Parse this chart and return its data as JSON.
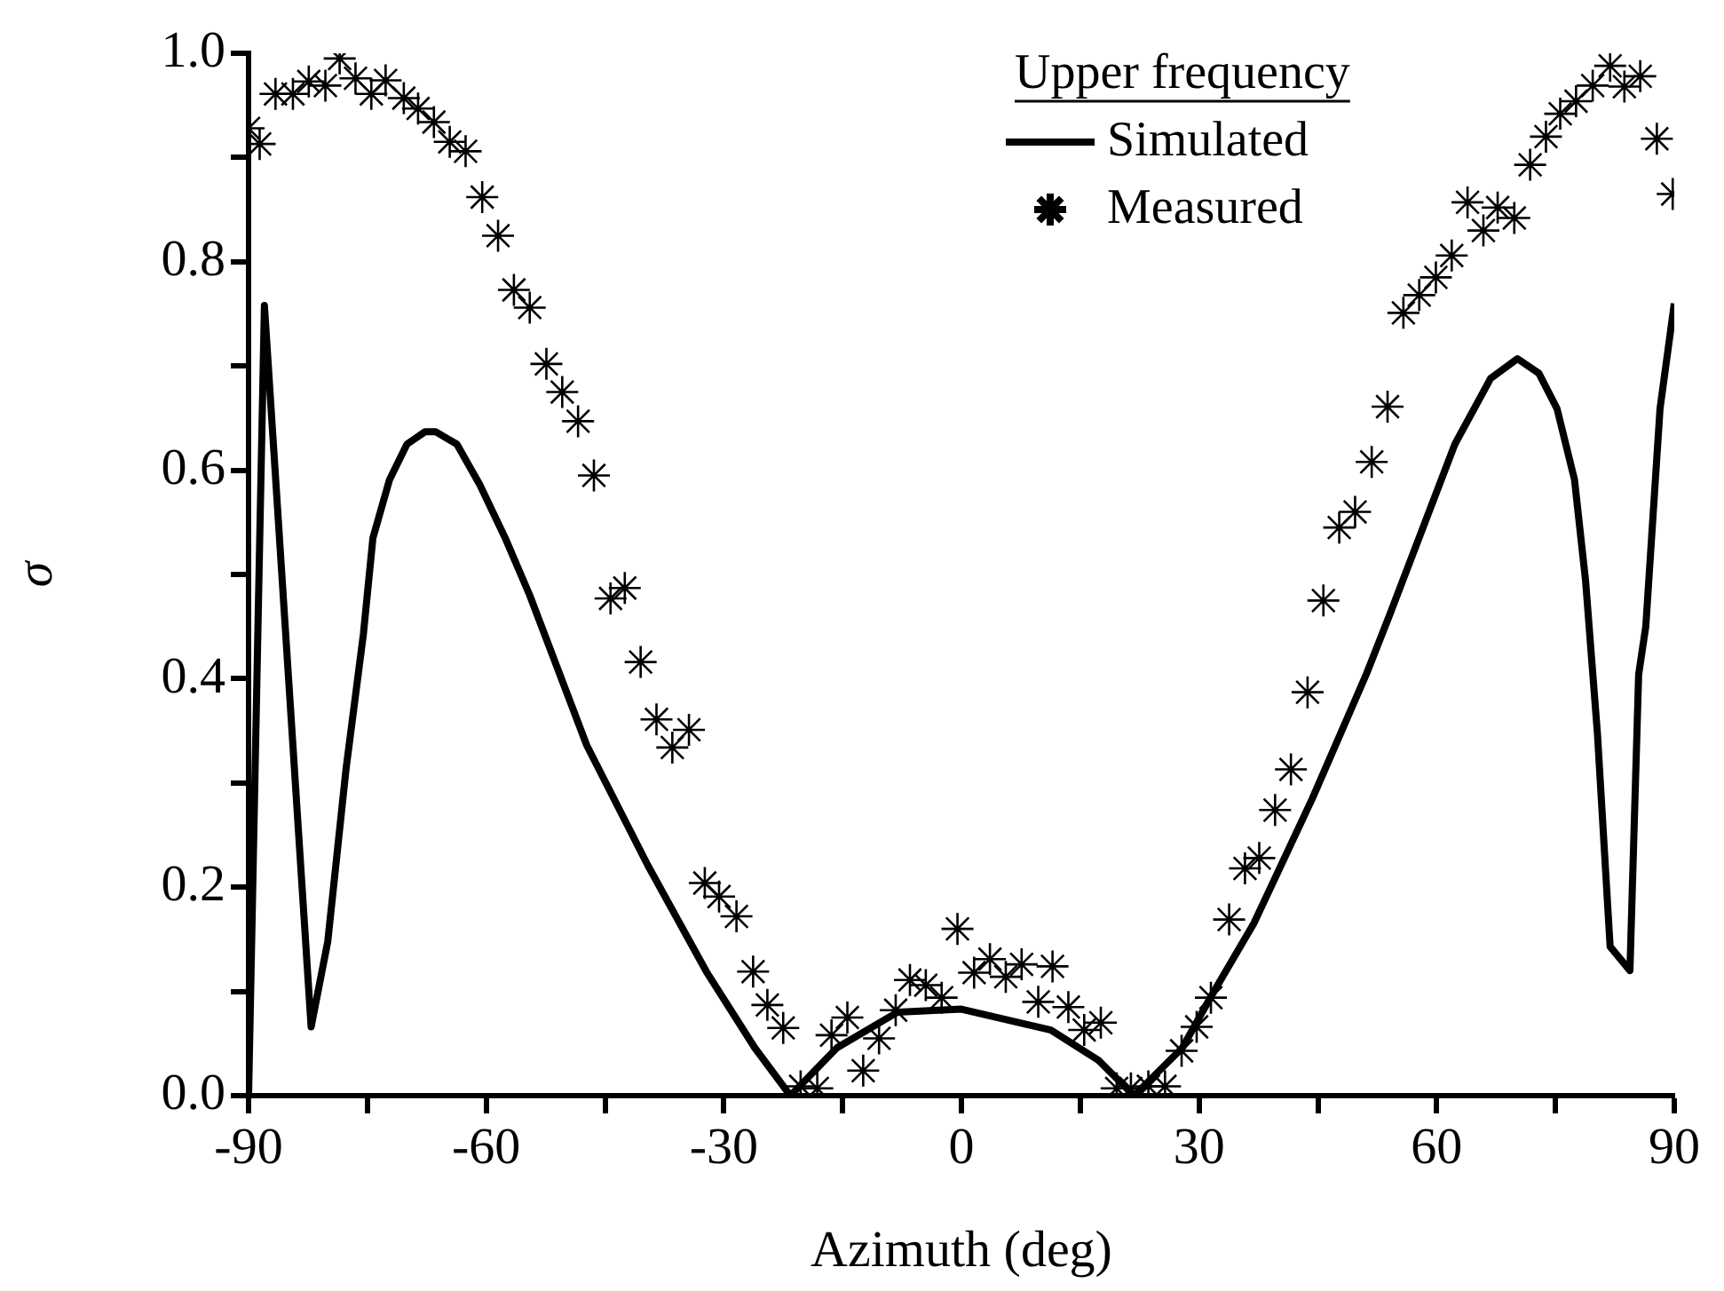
{
  "chart_data": {
    "type": "line",
    "xlabel": "Azimuth (deg)",
    "ylabel": "σ",
    "legend_title": "Upper frequency",
    "legend": "top",
    "grid": false,
    "xlim": [
      -90,
      90
    ],
    "xticks": [
      -90,
      {
        "value": -75,
        "label": null
      },
      -60,
      {
        "value": -45,
        "label": null
      },
      -30,
      {
        "value": -15,
        "label": null
      },
      0,
      {
        "value": 15,
        "label": null
      },
      30,
      {
        "value": 45,
        "label": null
      },
      60,
      {
        "value": 75,
        "label": null
      },
      90
    ],
    "ylim": [
      0,
      1
    ],
    "yticks": [
      {
        "value": 0,
        "label": "0.0"
      },
      {
        "value": 0.1,
        "label": null
      },
      0.2,
      {
        "value": 0.3,
        "label": null
      },
      0.4,
      {
        "value": 0.5,
        "label": null
      },
      0.6,
      {
        "value": 0.7,
        "label": null
      },
      0.8,
      {
        "value": 0.9,
        "label": null
      },
      {
        "value": 1,
        "label": "1.0"
      }
    ],
    "series": [
      {
        "name": "Simulated",
        "marker": "none",
        "line_style": "solid",
        "color": "#000000",
        "x": [
          -90,
          -88,
          -82.1,
          -80,
          -77.7,
          -75.5,
          -74.3,
          -72.2,
          -70,
          -67.7,
          -66.4,
          -63.7,
          -60.8,
          -57.6,
          -54.5,
          -47.3,
          -39.6,
          -32.2,
          -26.1,
          -21.6,
          -15.7,
          -8.1,
          0,
          11.3,
          17.3,
          21.8,
          27.9,
          31.5,
          36.9,
          44.3,
          51.1,
          54,
          62.3,
          66.8,
          70.2,
          72.9,
          75.2,
          77.4,
          78.8,
          80.3,
          81.9,
          84.4,
          85.5,
          86.4,
          88.2,
          90
        ],
        "values": [
          0,
          0.758,
          0.066,
          0.148,
          0.313,
          0.443,
          0.535,
          0.591,
          0.625,
          0.637,
          0.637,
          0.625,
          0.586,
          0.535,
          0.48,
          0.336,
          0.221,
          0.119,
          0.046,
          0,
          0.046,
          0.08,
          0.083,
          0.063,
          0.034,
          0,
          0.046,
          0.095,
          0.165,
          0.285,
          0.404,
          0.46,
          0.625,
          0.688,
          0.707,
          0.693,
          0.659,
          0.591,
          0.494,
          0.347,
          0.143,
          0.12,
          0.404,
          0.45,
          0.659,
          0.76
        ]
      },
      {
        "name": "Measured",
        "type": "scatter",
        "marker": "cross",
        "color": "#000000",
        "x": [
          -90,
          -88.6,
          -86.6,
          -84.4,
          -82.4,
          -80.3,
          -78.5,
          -76.5,
          -74.5,
          -72.7,
          -70.4,
          -68.6,
          -66.6,
          -64.6,
          -62.6,
          -60.5,
          -58.5,
          -56.5,
          -54.5,
          -52.4,
          -50.4,
          -48.4,
          -46.4,
          -44.3,
          -42.5,
          -40.5,
          -38.5,
          -36.5,
          -34.4,
          -32.4,
          -30.6,
          -28.4,
          -26.3,
          -24.5,
          -22.5,
          -20.3,
          -18.2,
          -16.4,
          -14.4,
          -12.4,
          -10.4,
          -8.3,
          -6.5,
          -4.5,
          -2.5,
          -0.5,
          1.6,
          3.6,
          5.6,
          7.6,
          9.7,
          11.5,
          13.5,
          15.5,
          17.6,
          19.6,
          21.4,
          23.6,
          25.7,
          27.8,
          29.7,
          31.5,
          33.8,
          35.8,
          37.6,
          39.6,
          41.6,
          43.7,
          45.7,
          47.7,
          49.7,
          51.8,
          53.8,
          55.8,
          57.8,
          59.9,
          61.9,
          63.9,
          65.9,
          67.7,
          69.8,
          71.8,
          73.8,
          75.6,
          77.6,
          79.7,
          81.9,
          83.7,
          85.7,
          87.8,
          89.8
        ],
        "values": [
          0.928,
          0.913,
          0.961,
          0.961,
          0.973,
          0.969,
          0.995,
          0.976,
          0.961,
          0.974,
          0.957,
          0.947,
          0.934,
          0.915,
          0.906,
          0.862,
          0.825,
          0.773,
          0.756,
          0.702,
          0.675,
          0.647,
          0.595,
          0.477,
          0.487,
          0.416,
          0.361,
          0.334,
          0.351,
          0.204,
          0.191,
          0.172,
          0.119,
          0.087,
          0.065,
          0.009,
          0.007,
          0.058,
          0.075,
          0.024,
          0.055,
          0.082,
          0.111,
          0.106,
          0.094,
          0.16,
          0.118,
          0.131,
          0.114,
          0.126,
          0.09,
          0.124,
          0.085,
          0.063,
          0.07,
          0.007,
          0.007,
          0.009,
          0.009,
          0.043,
          0.066,
          0.094,
          0.169,
          0.218,
          0.228,
          0.274,
          0.313,
          0.387,
          0.475,
          0.545,
          0.56,
          0.608,
          0.661,
          0.751,
          0.768,
          0.785,
          0.806,
          0.857,
          0.83,
          0.852,
          0.842,
          0.893,
          0.92,
          0.942,
          0.954,
          0.969,
          0.988,
          0.968,
          0.978,
          0.918,
          0.865
        ]
      }
    ]
  }
}
